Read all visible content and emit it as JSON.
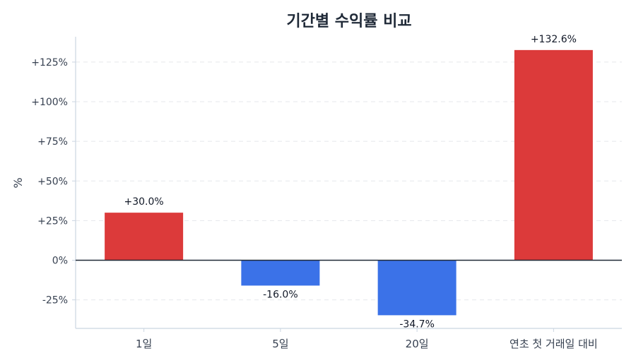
{
  "chart_data": {
    "type": "bar",
    "title": "기간별 수익률 비교",
    "xlabel": "",
    "ylabel": "%",
    "categories": [
      "1일",
      "5일",
      "20일",
      "연초 첫 거래일 대비"
    ],
    "values": [
      30.0,
      -16.0,
      -34.7,
      132.6
    ],
    "value_labels": [
      "+30.0%",
      "-16.0%",
      "-34.7%",
      "+132.6%"
    ],
    "ylim": [
      -43,
      141
    ],
    "yticks": [
      -25,
      0,
      25,
      50,
      75,
      100,
      125
    ],
    "ytick_labels": [
      "-25%",
      "0%",
      "+25%",
      "+50%",
      "+75%",
      "+100%",
      "+125%"
    ],
    "grid": true,
    "colors": {
      "positive": "#dc3a3a",
      "negative": "#3b72e8",
      "zero_line": "#1f2937",
      "grid": "#e5e7eb",
      "axis": "#cbd5e1",
      "text": "#374151"
    }
  }
}
